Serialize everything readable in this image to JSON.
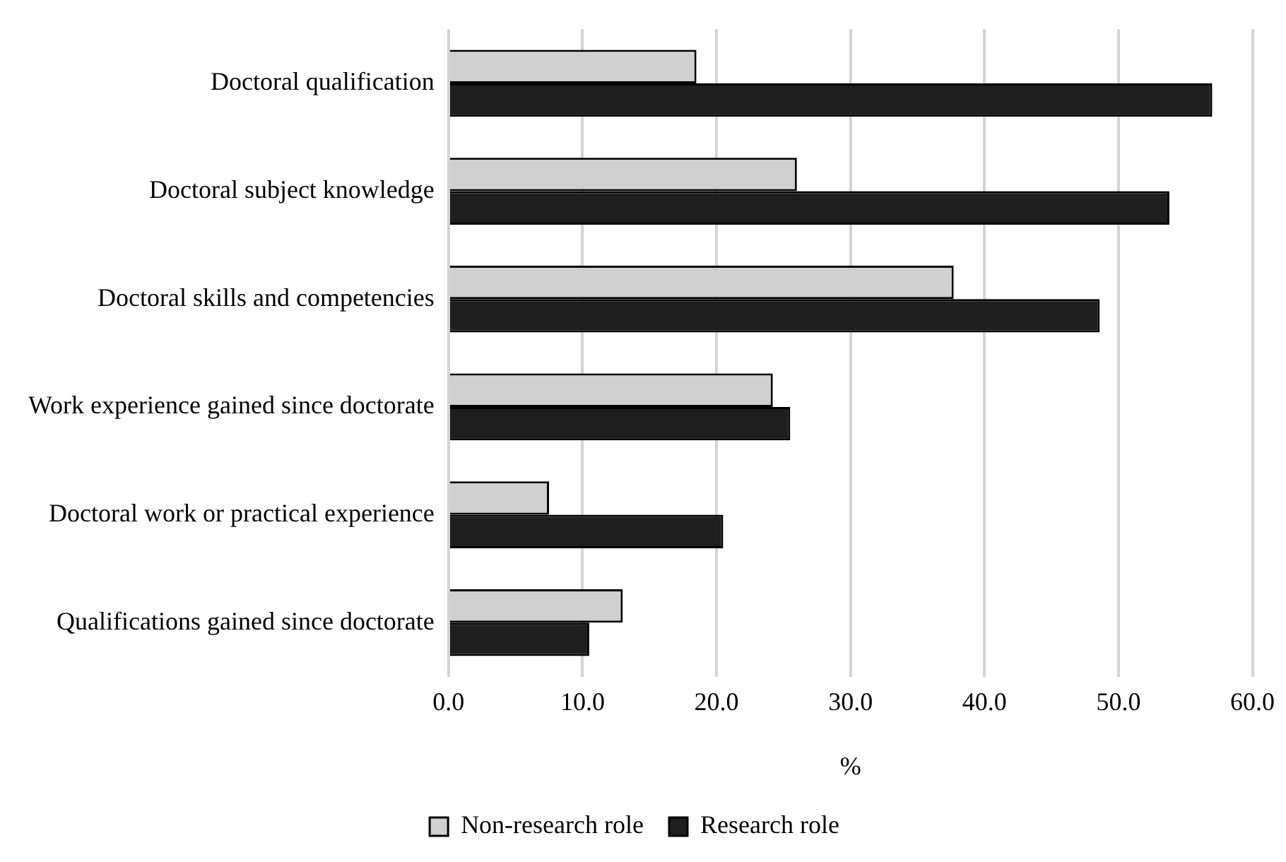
{
  "chart_data": {
    "type": "bar",
    "orientation": "horizontal",
    "xlabel": "%",
    "categories": [
      "Doctoral qualification",
      "Doctoral subject knowledge",
      "Doctoral skills and competencies",
      "Work experience gained since doctorate",
      "Doctoral work or practical experience",
      "Qualifications gained since doctorate"
    ],
    "series": [
      {
        "name": "Non-research role",
        "color": "#d0d0d0",
        "values": [
          18.5,
          26.0,
          37.7,
          24.2,
          7.5,
          13.0
        ]
      },
      {
        "name": "Research role",
        "color": "#1e1e1e",
        "values": [
          57.0,
          53.8,
          48.6,
          25.5,
          20.5,
          10.5
        ]
      }
    ],
    "xlim": [
      0,
      60
    ],
    "xticks": [
      {
        "value": 0,
        "label": "0.0"
      },
      {
        "value": 10,
        "label": "10.0"
      },
      {
        "value": 20,
        "label": "20.0"
      },
      {
        "value": 30,
        "label": "30.0"
      },
      {
        "value": 40,
        "label": "40.0"
      },
      {
        "value": 50,
        "label": "50.0"
      },
      {
        "value": 60,
        "label": "60.0"
      }
    ],
    "grid": "x",
    "legend": "bottom"
  }
}
